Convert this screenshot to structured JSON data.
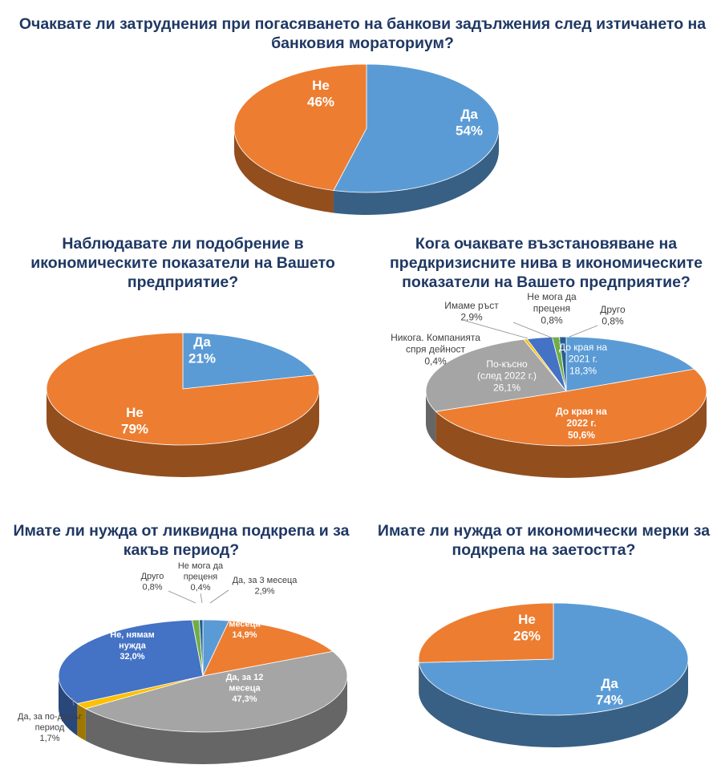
{
  "chart_data": [
    {
      "type": "pie",
      "title": "Очаквате ли затруднения при погасяването на банкови задължения след изтичането на банковия мораториум?",
      "slices": [
        {
          "label": "Да",
          "value": 54,
          "display": "54%",
          "color": "#5b9bd5"
        },
        {
          "label": "Не",
          "value": 46,
          "display": "46%",
          "color": "#ed7d31"
        }
      ]
    },
    {
      "type": "pie",
      "title": "Наблюдавате ли подобрение в икономическите показатели на Вашето предприятие?",
      "slices": [
        {
          "label": "Да",
          "value": 21,
          "display": "21%",
          "color": "#5b9bd5"
        },
        {
          "label": "Не",
          "value": 79,
          "display": "79%",
          "color": "#ed7d31"
        }
      ]
    },
    {
      "type": "pie",
      "title": "Кога очаквате възстановяване на предкризисните нива в икономическите показатели на Вашето предприятие?",
      "slices": [
        {
          "label": "До края на 2021 г.",
          "value": 18.3,
          "display": "18,3%",
          "color": "#5b9bd5"
        },
        {
          "label": "До края на 2022 г.",
          "value": 50.6,
          "display": "50,6%",
          "color": "#ed7d31"
        },
        {
          "label": "По-късно (след 2022 г.)",
          "value": 26.1,
          "display": "26,1%",
          "color": "#a5a5a5"
        },
        {
          "label": "Никога. Компанията спря дейност",
          "value": 0.4,
          "display": "0,4%",
          "color": "#ffc000"
        },
        {
          "label": "Имаме ръст",
          "value": 2.9,
          "display": "2,9%",
          "color": "#4472c4"
        },
        {
          "label": "Не мога да преценя",
          "value": 0.8,
          "display": "0,8%",
          "color": "#70ad47"
        },
        {
          "label": "Друго",
          "value": 0.8,
          "display": "0,8%",
          "color": "#255e91"
        }
      ]
    },
    {
      "type": "pie",
      "title": "Имате ли нужда от ликвидна подкрепа и за какъв период?",
      "slices": [
        {
          "label": "Да, за 3 месеца",
          "value": 2.9,
          "display": "2,9%",
          "color": "#5b9bd5"
        },
        {
          "label": "Да, за 6 месеца",
          "value": 14.9,
          "display": "14,9%",
          "color": "#ed7d31"
        },
        {
          "label": "Да, за 12 месеца",
          "value": 47.3,
          "display": "47,3%",
          "color": "#a5a5a5"
        },
        {
          "label": "Да, за по-дълъг период",
          "value": 1.7,
          "display": "1,7%",
          "color": "#ffc000"
        },
        {
          "label": "Не, нямам нужда",
          "value": 32.0,
          "display": "32,0%",
          "color": "#4472c4"
        },
        {
          "label": "Друго",
          "value": 0.8,
          "display": "0,8%",
          "color": "#70ad47"
        },
        {
          "label": "Не мога да преценя",
          "value": 0.4,
          "display": "0,4%",
          "color": "#255e91"
        }
      ]
    },
    {
      "type": "pie",
      "title": "Имате ли нужда от икономически мерки за подкрепа на заетостта?",
      "slices": [
        {
          "label": "Да",
          "value": 74,
          "display": "74%",
          "color": "#5b9bd5"
        },
        {
          "label": "Не",
          "value": 26,
          "display": "26%",
          "color": "#ed7d31"
        }
      ]
    }
  ]
}
